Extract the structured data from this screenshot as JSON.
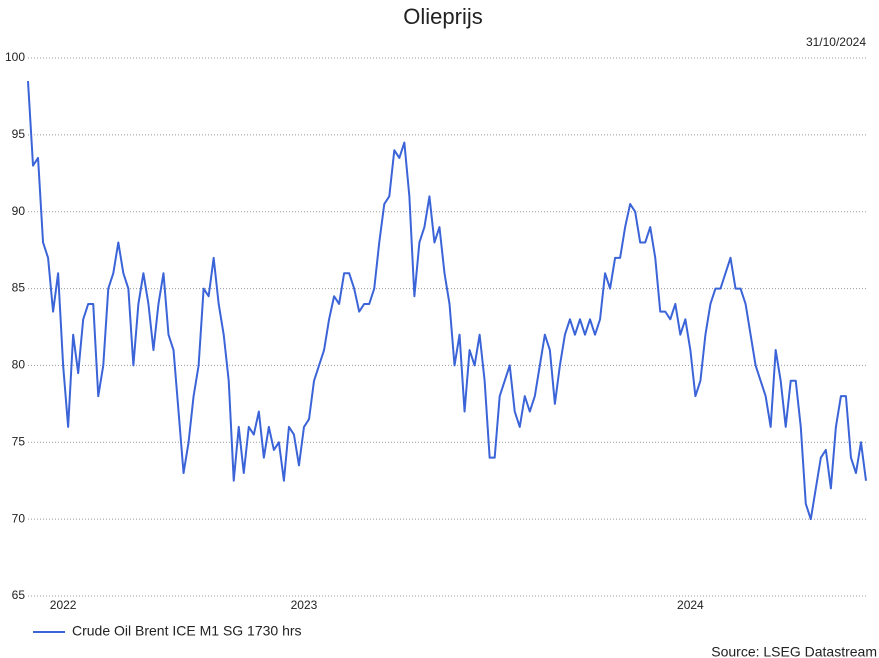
{
  "chart_data": {
    "type": "line",
    "title": "Olieprijs",
    "date": "31/10/2024",
    "source": "Source: LSEG Datastream",
    "categories": [
      null,
      null,
      null,
      null,
      null,
      null,
      null,
      "2022",
      null,
      null,
      null,
      null,
      null,
      null,
      null,
      null,
      null,
      null,
      null,
      null,
      null,
      null,
      null,
      null,
      null,
      null,
      null,
      null,
      null,
      null,
      null,
      null,
      null,
      null,
      null,
      null,
      null,
      null,
      null,
      null,
      null,
      null,
      null,
      null,
      null,
      null,
      null,
      null,
      null,
      null,
      null,
      null,
      null,
      null,
      null,
      "2023",
      null,
      null,
      null,
      null,
      null,
      null,
      null,
      null,
      null,
      null,
      null,
      null,
      null,
      null,
      null,
      null,
      null,
      null,
      null,
      null,
      null,
      null,
      null,
      null,
      null,
      null,
      null,
      null,
      null,
      null,
      null,
      null,
      null,
      null,
      null,
      null,
      null,
      null,
      null,
      null,
      null,
      null,
      null,
      null,
      null,
      null,
      null,
      null,
      null,
      null,
      null,
      null,
      null,
      null,
      null,
      null,
      null,
      null,
      null,
      null,
      null,
      null,
      null,
      null,
      null,
      null,
      null,
      null,
      null,
      null,
      null,
      null,
      null,
      null,
      null,
      null,
      "2024",
      null,
      null,
      null,
      null,
      null,
      null,
      null,
      null,
      null,
      null,
      null,
      null,
      null,
      null,
      null,
      null,
      null,
      null,
      null,
      null,
      null,
      null,
      null,
      null,
      null,
      null,
      null,
      null,
      null,
      null,
      null,
      null,
      null,
      null,
      null
    ],
    "series": [
      {
        "name": "Crude Oil Brent ICE M1 SG 1730 hrs",
        "color": "#3b64d8",
        "values": [
          98.5,
          93,
          93.5,
          88,
          87,
          83.5,
          86,
          80,
          76,
          82,
          79.5,
          83,
          84,
          84,
          78,
          80,
          85,
          86,
          88,
          86,
          85,
          80,
          84,
          86,
          84,
          81,
          84,
          86,
          82,
          81,
          77,
          73,
          75,
          78,
          80,
          85,
          84.5,
          87,
          84,
          82,
          79,
          72.5,
          76,
          73,
          76,
          75.5,
          77,
          74,
          76,
          74.5,
          75,
          72.5,
          76,
          75.5,
          73.5,
          76,
          76.5,
          79,
          80,
          81,
          83,
          84.5,
          84,
          86,
          86,
          85,
          83.5,
          84,
          84,
          85,
          88,
          90.5,
          91,
          94,
          93.5,
          94.5,
          91,
          84.5,
          88,
          89,
          91,
          88,
          89,
          86,
          84,
          80,
          82,
          77,
          81,
          80,
          82,
          79,
          74,
          74,
          78,
          79,
          80,
          77,
          76,
          78,
          77,
          78,
          80,
          82,
          81,
          77.5,
          80,
          82,
          83,
          82,
          83,
          82,
          83,
          82,
          83,
          86,
          85,
          87,
          87,
          89,
          90.5,
          90,
          88,
          88,
          89,
          87,
          83.5,
          83.5,
          83,
          84,
          82,
          83,
          81,
          78,
          79,
          82,
          84,
          85,
          85,
          86,
          87,
          85,
          85,
          84,
          82,
          80,
          79,
          78,
          76,
          81,
          79,
          76,
          79,
          79,
          76,
          71,
          70,
          72,
          74,
          74.5,
          72,
          76,
          78,
          78,
          74,
          73,
          75,
          72.5
        ]
      }
    ],
    "ylim": [
      65,
      100
    ],
    "yticks": [
      65,
      70,
      75,
      80,
      85,
      90,
      95,
      100
    ],
    "grid": true
  }
}
